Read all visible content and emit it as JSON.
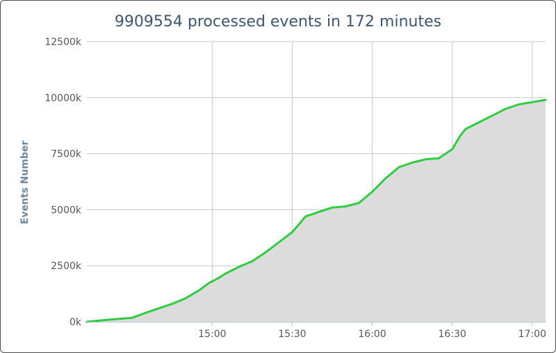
{
  "chart_data": {
    "type": "area",
    "title": "9909554 processed events in 172 minutes",
    "xlabel": "",
    "ylabel": "Events Number",
    "x_tick_labels": [
      "15:00",
      "15:30",
      "16:00",
      "16:30",
      "17:00"
    ],
    "x_ticks_minutes": [
      900,
      930,
      960,
      990,
      1020
    ],
    "y_tick_labels": [
      "0k",
      "2500k",
      "5000k",
      "7500k",
      "10000k",
      "12500k"
    ],
    "y_ticks": [
      0,
      2500,
      5000,
      7500,
      10000,
      12500
    ],
    "xlim": [
      "14:13",
      "17:05"
    ],
    "ylim": [
      0,
      12500
    ],
    "y_unit": "k events",
    "grid": {
      "vertical": true,
      "horizontal": true
    },
    "legend": "none",
    "series": [
      {
        "x": [
          "14:13",
          "14:20",
          "14:30",
          "14:35",
          "14:40",
          "14:45",
          "14:50",
          "14:55",
          "14:59",
          "15:00",
          "15:03",
          "15:05",
          "15:10",
          "15:15",
          "15:20",
          "15:25",
          "15:30",
          "15:35",
          "15:40",
          "15:45",
          "15:50",
          "15:55",
          "16:00",
          "16:05",
          "16:10",
          "16:15",
          "16:20",
          "16:25",
          "16:30",
          "16:33",
          "16:35",
          "16:40",
          "16:45",
          "16:50",
          "16:55",
          "17:00",
          "17:05"
        ],
        "values": [
          0,
          80,
          180,
          400,
          600,
          800,
          1050,
          1400,
          1750,
          1800,
          2000,
          2150,
          2450,
          2700,
          3100,
          3550,
          4000,
          4700,
          4900,
          5100,
          5150,
          5300,
          5800,
          6400,
          6900,
          7100,
          7250,
          7300,
          7700,
          8300,
          8600,
          8900,
          9200,
          9500,
          9700,
          9800,
          9900
        ]
      }
    ],
    "colors": {
      "line": "#2ecc40",
      "area_fill": "#dcdcdc",
      "grid": "#c8c8c8",
      "axis": "#b0c4de",
      "title": "#3e576f",
      "axis_title": "#6e8aa3",
      "tick_text": "#555555"
    }
  }
}
